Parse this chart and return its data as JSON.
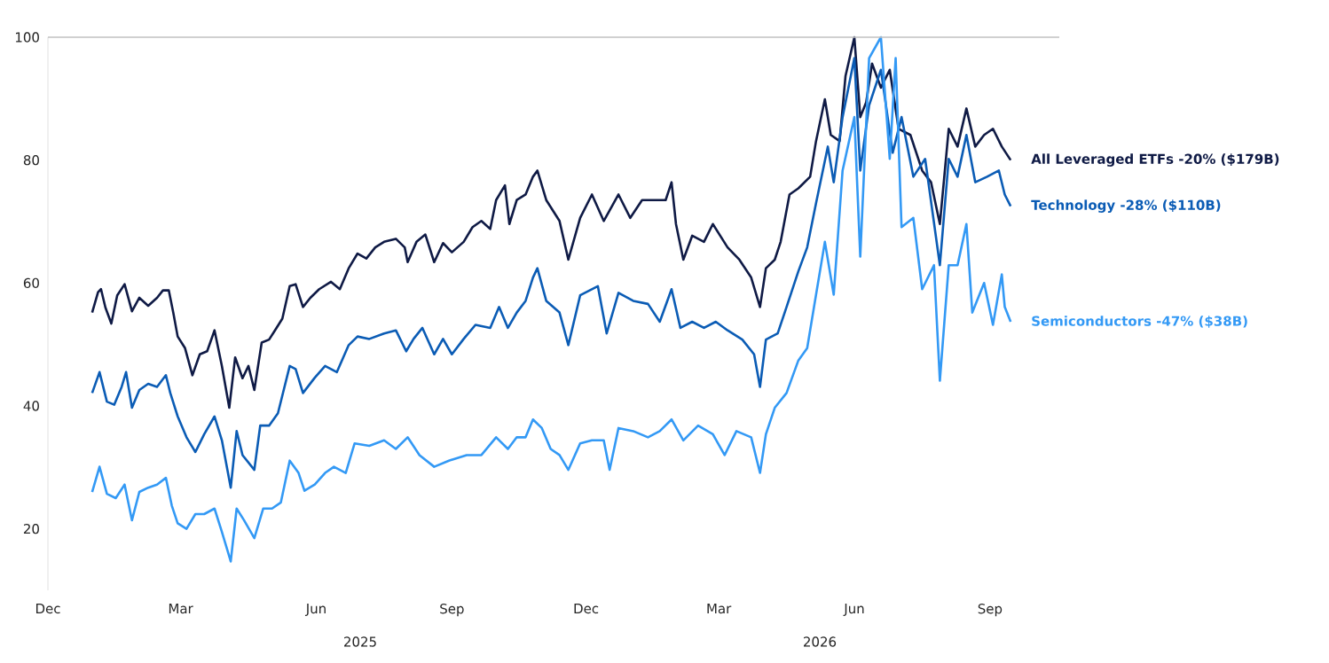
{
  "chart_data": {
    "type": "line",
    "xlim": [
      "2024-12-01",
      "2026-10-18"
    ],
    "ylim": [
      10,
      100
    ],
    "xticks": [
      {
        "value": "2024-12-01",
        "label": "Dec"
      },
      {
        "value": "2025-03-01",
        "label": "Mar"
      },
      {
        "value": "2025-06-01",
        "label": "Jun"
      },
      {
        "value": "2025-09-01",
        "label": "Sep"
      },
      {
        "value": "2025-12-01",
        "label": "Dec"
      },
      {
        "value": "2026-03-01",
        "label": "Mar"
      },
      {
        "value": "2026-06-01",
        "label": "Jun"
      },
      {
        "value": "2026-09-01",
        "label": "Sep"
      }
    ],
    "yticks": [
      20,
      40,
      60,
      80,
      100
    ],
    "grid": false,
    "legend": false,
    "ref_lines": [
      {
        "axis": "y",
        "value": 100,
        "color": "#c0c0c0"
      }
    ],
    "annotations": [
      "2025",
      "2026"
    ],
    "series": [
      {
        "name": "All Leveraged ETFs -20%  ($179B)",
        "color": "#0f1a45",
        "x": [
          "2024-12-31",
          "2025-01-04",
          "2025-01-06",
          "2025-01-09",
          "2025-01-13",
          "2025-01-17",
          "2025-01-22",
          "2025-01-27",
          "2025-02-01",
          "2025-02-07",
          "2025-02-13",
          "2025-02-17",
          "2025-02-21",
          "2025-02-24",
          "2025-02-27",
          "2025-03-04",
          "2025-03-09",
          "2025-03-14",
          "2025-03-19",
          "2025-03-24",
          "2025-03-29",
          "2025-04-03",
          "2025-04-07",
          "2025-04-12",
          "2025-04-16",
          "2025-04-20",
          "2025-04-25",
          "2025-04-30",
          "2025-05-04",
          "2025-05-09",
          "2025-05-14",
          "2025-05-18",
          "2025-05-23",
          "2025-05-28",
          "2025-06-03",
          "2025-06-11",
          "2025-06-17",
          "2025-06-23",
          "2025-06-29",
          "2025-07-05",
          "2025-07-11",
          "2025-07-17",
          "2025-07-25",
          "2025-07-31",
          "2025-08-02",
          "2025-08-08",
          "2025-08-14",
          "2025-08-20",
          "2025-08-26",
          "2025-09-01",
          "2025-09-09",
          "2025-09-15",
          "2025-09-21",
          "2025-09-27",
          "2025-10-01",
          "2025-10-07",
          "2025-10-10",
          "2025-10-15",
          "2025-10-21",
          "2025-10-26",
          "2025-10-29",
          "2025-11-04",
          "2025-11-13",
          "2025-11-19",
          "2025-11-27",
          "2025-12-05",
          "2025-12-13",
          "2025-12-23",
          "2025-12-31",
          "2026-01-08",
          "2026-01-18",
          "2026-01-24",
          "2026-01-28",
          "2026-01-31",
          "2026-02-05",
          "2026-02-11",
          "2026-02-19",
          "2026-02-25",
          "2026-03-07",
          "2026-03-15",
          "2026-03-23",
          "2026-03-29",
          "2026-04-02",
          "2026-04-08",
          "2026-04-12",
          "2026-04-18",
          "2026-04-24",
          "2026-05-02",
          "2026-05-06",
          "2026-05-12",
          "2026-05-16",
          "2026-05-22",
          "2026-05-26",
          "2026-06-01",
          "2026-06-05",
          "2026-06-09",
          "2026-06-13",
          "2026-06-19",
          "2026-06-25",
          "2026-07-01",
          "2026-07-09",
          "2026-07-17",
          "2026-07-23",
          "2026-07-29",
          "2026-08-04",
          "2026-08-10",
          "2026-08-16",
          "2026-08-22",
          "2026-08-28",
          "2026-09-03",
          "2026-09-09",
          "2026-09-15"
        ],
        "values": [
          55.2,
          58.5,
          59,
          56,
          53.4,
          58,
          59.8,
          55.4,
          57.6,
          56.3,
          57.6,
          58.8,
          58.8,
          55.2,
          51.3,
          49.4,
          45,
          48.4,
          48.9,
          52.3,
          46.5,
          39.7,
          47.9,
          44.5,
          46.5,
          42.6,
          50.3,
          50.8,
          52.3,
          54.2,
          59.5,
          59.8,
          56.1,
          57.6,
          59,
          60.2,
          59,
          62.4,
          64.8,
          64,
          65.8,
          66.7,
          67.2,
          65.8,
          63.4,
          66.7,
          67.9,
          63.4,
          66.5,
          65,
          66.7,
          69.1,
          70.1,
          68.8,
          73.5,
          75.9,
          69.6,
          73.5,
          74.4,
          77.3,
          78.3,
          73.5,
          70.1,
          63.8,
          70.6,
          74.4,
          70.1,
          74.4,
          70.6,
          73.5,
          73.5,
          73.5,
          76.4,
          69.6,
          63.8,
          67.7,
          66.7,
          69.6,
          65.8,
          63.8,
          60.9,
          56.1,
          62.4,
          63.8,
          66.7,
          74.4,
          75.4,
          77.3,
          83.1,
          89.9,
          84.1,
          83.1,
          93.7,
          100,
          87,
          89.4,
          95.7,
          91.8,
          94.7,
          85.1,
          84.1,
          78.3,
          76.4,
          69.6,
          85.1,
          82.2,
          88.4,
          82.2,
          84.1,
          85.1,
          82.2,
          80
        ]
      },
      {
        "name": "Technology -28%  ($110B)",
        "color": "#0b5cb5",
        "x": [
          "2024-12-31",
          "2025-01-05",
          "2025-01-10",
          "2025-01-15",
          "2025-01-20",
          "2025-01-23",
          "2025-01-27",
          "2025-02-01",
          "2025-02-07",
          "2025-02-13",
          "2025-02-19",
          "2025-02-22",
          "2025-02-27",
          "2025-03-05",
          "2025-03-11",
          "2025-03-17",
          "2025-03-24",
          "2025-03-29",
          "2025-04-04",
          "2025-04-08",
          "2025-04-12",
          "2025-04-20",
          "2025-04-24",
          "2025-04-30",
          "2025-05-06",
          "2025-05-14",
          "2025-05-18",
          "2025-05-23",
          "2025-05-31",
          "2025-06-07",
          "2025-06-15",
          "2025-06-23",
          "2025-06-29",
          "2025-07-07",
          "2025-07-17",
          "2025-07-25",
          "2025-08-01",
          "2025-08-06",
          "2025-08-12",
          "2025-08-20",
          "2025-08-26",
          "2025-09-01",
          "2025-09-09",
          "2025-09-17",
          "2025-09-27",
          "2025-10-03",
          "2025-10-09",
          "2025-10-15",
          "2025-10-21",
          "2025-10-26",
          "2025-10-29",
          "2025-11-04",
          "2025-11-13",
          "2025-11-19",
          "2025-11-27",
          "2025-12-09",
          "2025-12-15",
          "2025-12-23",
          "2026-01-02",
          "2026-01-12",
          "2026-01-20",
          "2026-01-28",
          "2026-02-03",
          "2026-02-11",
          "2026-02-19",
          "2026-02-27",
          "2026-03-07",
          "2026-03-17",
          "2026-03-25",
          "2026-03-29",
          "2026-04-02",
          "2026-04-10",
          "2026-04-16",
          "2026-04-24",
          "2026-04-30",
          "2026-05-06",
          "2026-05-14",
          "2026-05-18",
          "2026-05-24",
          "2026-06-01",
          "2026-06-05",
          "2026-06-11",
          "2026-06-19",
          "2026-06-27",
          "2026-07-03",
          "2026-07-11",
          "2026-07-19",
          "2026-07-29",
          "2026-08-04",
          "2026-08-10",
          "2026-08-16",
          "2026-08-22",
          "2026-08-30",
          "2026-09-07",
          "2026-09-11",
          "2026-09-15"
        ],
        "values": [
          42.1,
          45.5,
          40.7,
          40.2,
          43.1,
          45.5,
          39.7,
          42.6,
          43.6,
          43.1,
          45,
          42.1,
          38.3,
          34.9,
          32.5,
          35.4,
          38.3,
          34.4,
          26.7,
          35.9,
          32,
          29.6,
          36.8,
          36.8,
          38.8,
          46.5,
          46,
          42.1,
          44.6,
          46.5,
          45.5,
          49.9,
          51.3,
          50.9,
          51.8,
          52.3,
          48.9,
          50.9,
          52.7,
          48.4,
          50.9,
          48.4,
          50.9,
          53.2,
          52.7,
          56.1,
          52.7,
          55.2,
          57.1,
          60.9,
          62.4,
          57.1,
          55.2,
          49.9,
          58,
          59.5,
          51.8,
          58.4,
          57.1,
          56.6,
          53.7,
          59,
          52.7,
          53.7,
          52.7,
          53.7,
          52.3,
          50.8,
          48.4,
          43.1,
          50.8,
          51.8,
          56.1,
          61.9,
          65.8,
          73,
          82.2,
          76.4,
          87,
          96.6,
          78.3,
          88.9,
          94.7,
          81.2,
          87,
          77.3,
          80.2,
          62.9,
          80.2,
          77.3,
          84.1,
          76.4,
          77.3,
          78.3,
          74.4,
          72.5
        ]
      },
      {
        "name": "Semiconductors -47%  ($38B)",
        "color": "#3399f5",
        "x": [
          "2024-12-31",
          "2025-01-05",
          "2025-01-10",
          "2025-01-16",
          "2025-01-22",
          "2025-01-27",
          "2025-02-01",
          "2025-02-07",
          "2025-02-13",
          "2025-02-19",
          "2025-02-23",
          "2025-02-27",
          "2025-03-05",
          "2025-03-11",
          "2025-03-17",
          "2025-03-24",
          "2025-03-29",
          "2025-04-04",
          "2025-04-08",
          "2025-04-13",
          "2025-04-20",
          "2025-04-26",
          "2025-05-02",
          "2025-05-08",
          "2025-05-14",
          "2025-05-20",
          "2025-05-24",
          "2025-05-31",
          "2025-06-07",
          "2025-06-13",
          "2025-06-21",
          "2025-06-27",
          "2025-07-07",
          "2025-07-17",
          "2025-07-25",
          "2025-08-02",
          "2025-08-10",
          "2025-08-20",
          "2025-08-30",
          "2025-09-11",
          "2025-09-21",
          "2025-10-01",
          "2025-10-09",
          "2025-10-15",
          "2025-10-21",
          "2025-10-26",
          "2025-11-01",
          "2025-11-07",
          "2025-11-13",
          "2025-11-19",
          "2025-11-27",
          "2025-12-05",
          "2025-12-13",
          "2025-12-17",
          "2025-12-23",
          "2026-01-02",
          "2026-01-12",
          "2026-01-20",
          "2026-01-28",
          "2026-02-05",
          "2026-02-15",
          "2026-02-25",
          "2026-03-05",
          "2026-03-13",
          "2026-03-23",
          "2026-03-29",
          "2026-04-02",
          "2026-04-08",
          "2026-04-16",
          "2026-04-24",
          "2026-04-30",
          "2026-05-06",
          "2026-05-12",
          "2026-05-18",
          "2026-05-24",
          "2026-06-01",
          "2026-06-05",
          "2026-06-11",
          "2026-06-19",
          "2026-06-25",
          "2026-06-29",
          "2026-07-03",
          "2026-07-11",
          "2026-07-17",
          "2026-07-25",
          "2026-07-29",
          "2026-08-04",
          "2026-08-10",
          "2026-08-16",
          "2026-08-20",
          "2026-08-28",
          "2026-09-03",
          "2026-09-09",
          "2026-09-11",
          "2026-09-15"
        ],
        "values": [
          26,
          30.1,
          25.7,
          25,
          27.2,
          21.4,
          26,
          26.7,
          27.2,
          28.3,
          23.8,
          20.9,
          20,
          22.4,
          22.4,
          23.3,
          19.5,
          14.7,
          23.3,
          21.4,
          18.5,
          23.3,
          23.3,
          24.3,
          31.1,
          29.1,
          26.2,
          27.2,
          29.1,
          30.1,
          29.1,
          33.9,
          33.5,
          34.4,
          33,
          34.9,
          32,
          30.1,
          31.1,
          32,
          32,
          34.9,
          33,
          34.9,
          34.9,
          37.8,
          36.4,
          33,
          32,
          29.6,
          33.9,
          34.4,
          34.4,
          29.6,
          36.4,
          35.9,
          34.9,
          35.9,
          37.8,
          34.4,
          36.8,
          35.4,
          32,
          35.9,
          34.9,
          29.1,
          35.4,
          39.7,
          42.1,
          47.4,
          49.4,
          58.1,
          66.7,
          58.1,
          78.3,
          87,
          64.3,
          96.6,
          100,
          80.2,
          96.6,
          69.1,
          70.6,
          59,
          62.9,
          44.1,
          62.9,
          62.9,
          69.6,
          55.2,
          60,
          53.2,
          61.4,
          56.1,
          53.7
        ]
      }
    ]
  }
}
